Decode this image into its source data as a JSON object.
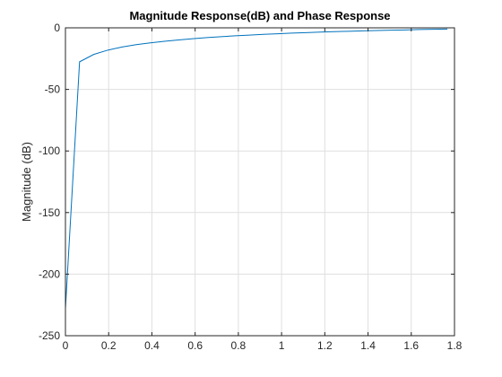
{
  "chart_data": {
    "type": "line",
    "title": "Magnitude Response(dB) and Phase Response",
    "xlabel": "",
    "ylabel": "Magnitude (dB)",
    "xlim": [
      0,
      1.8
    ],
    "ylim": [
      -250,
      0
    ],
    "xticks": [
      0,
      0.2,
      0.4,
      0.6,
      0.8,
      1,
      1.2,
      1.4,
      1.6,
      1.8
    ],
    "xtick_labels": [
      "0",
      "0.2",
      "0.4",
      "0.6",
      "0.8",
      "1",
      "1.2",
      "1.4",
      "1.6",
      "1.8"
    ],
    "yticks": [
      -250,
      -200,
      -150,
      -100,
      -50,
      0
    ],
    "ytick_labels": [
      "-250",
      "-200",
      "-150",
      "-100",
      "-50",
      "0"
    ],
    "grid": true,
    "series": [
      {
        "color": "#0072bd",
        "x": [
          0,
          0.0654,
          0.1309,
          0.1963,
          0.2618,
          0.3272,
          0.3927,
          0.4581,
          0.5236,
          0.589,
          0.6545,
          0.7199,
          0.7854,
          0.8508,
          0.9163,
          0.9817,
          1.0472,
          1.1126,
          1.1781,
          1.2435,
          1.309,
          1.3744,
          1.4399,
          1.5053,
          1.5708,
          1.6362,
          1.7017,
          1.7671
        ],
        "y": [
          -228,
          -27.6,
          -21.6,
          -18.1,
          -15.6,
          -13.7,
          -12.2,
          -10.9,
          -9.8,
          -8.8,
          -7.9,
          -7.2,
          -6.5,
          -5.9,
          -5.3,
          -4.8,
          -4.3,
          -3.9,
          -3.5,
          -3.1,
          -2.8,
          -2.5,
          -2.2,
          -1.9,
          -1.7,
          -1.4,
          -1.2,
          -1.0
        ]
      }
    ]
  }
}
